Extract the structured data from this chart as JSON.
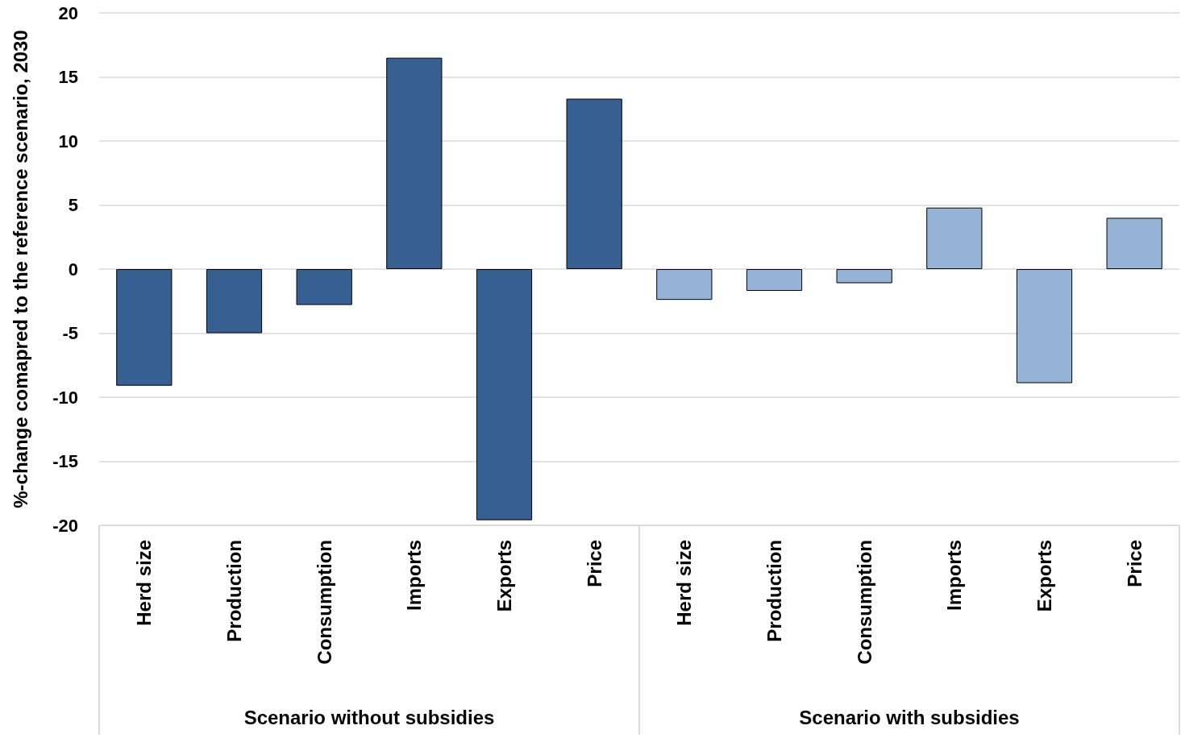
{
  "chart_data": {
    "type": "bar",
    "ylabel": "%-change comapred to the reference scenario, 2030",
    "categories": [
      "Herd size",
      "Production",
      "Consumption",
      "Imports",
      "Exports",
      "Price",
      "Herd size",
      "Production",
      "Consumption",
      "Imports",
      "Exports",
      "Price"
    ],
    "values": [
      -9.1,
      -5.0,
      -2.8,
      16.5,
      -19.6,
      13.3,
      -2.4,
      -1.7,
      -1.1,
      4.8,
      -8.9,
      4.0
    ],
    "colors": [
      "#376092",
      "#376092",
      "#376092",
      "#376092",
      "#376092",
      "#376092",
      "#95b3d7",
      "#95b3d7",
      "#95b3d7",
      "#95b3d7",
      "#95b3d7",
      "#95b3d7"
    ],
    "annotations": [
      "Scenario without subsidies",
      "Scenario with subsidies"
    ],
    "ylim": [
      -20,
      20
    ],
    "yticks": [
      -20,
      -15,
      -10,
      -5,
      0,
      5,
      10,
      15,
      20
    ],
    "grid": "y"
  }
}
